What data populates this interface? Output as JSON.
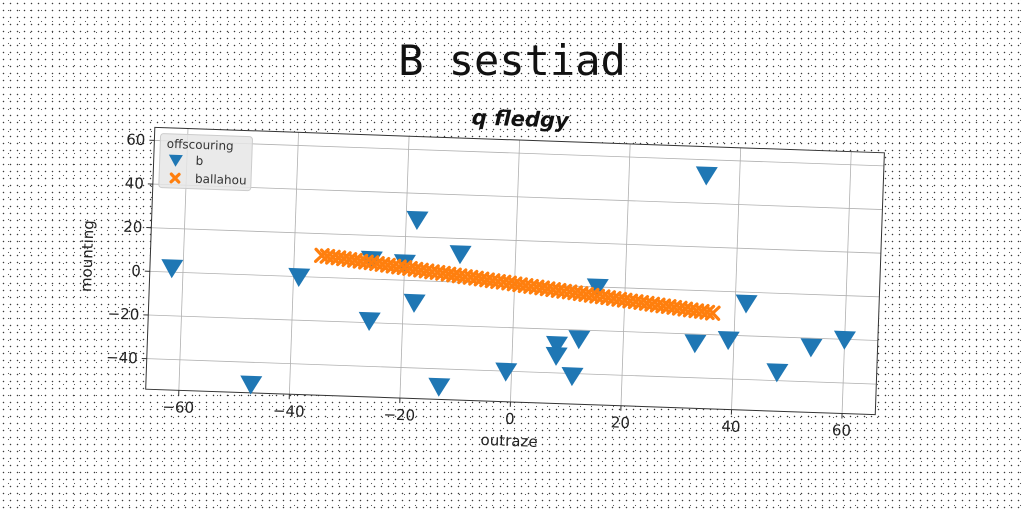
{
  "suptitle": "B sestiad",
  "chart_data": {
    "type": "scatter",
    "title": "q fledgy",
    "xlabel": "outraze",
    "ylabel": "mounting",
    "xlim": [
      -66,
      66
    ],
    "ylim": [
      -54,
      66
    ],
    "xticks": [
      -60,
      -40,
      -20,
      0,
      20,
      40,
      60
    ],
    "yticks": [
      -40,
      -20,
      0,
      20,
      40,
      60
    ],
    "grid": true,
    "legend": {
      "title": "offscouring",
      "location": "upper-left"
    },
    "series": [
      {
        "name": "b",
        "color": "#1f77b4",
        "marker": "triangle-down",
        "x": [
          -62,
          -47,
          -39,
          -26,
          -26,
          -20,
          -18,
          -18,
          -13,
          -10,
          -1,
          8,
          8,
          11,
          12,
          15,
          33,
          34,
          39,
          42,
          48,
          54,
          60
        ],
        "y": [
          2,
          -50,
          0,
          9,
          -19,
          8,
          28,
          -10,
          -48,
          13,
          -40,
          -27,
          -32,
          -41,
          -24,
          0,
          -24,
          53,
          -22,
          -5,
          -36,
          -24,
          -20
        ]
      },
      {
        "name": "ballahou",
        "color": "#ff7f0e",
        "marker": "x",
        "x": [
          -35,
          -34,
          -33,
          -32,
          -31,
          -30,
          -29,
          -28,
          -27,
          -26,
          -25,
          -24,
          -23,
          -22,
          -21,
          -20,
          -19,
          -18,
          -17,
          -16,
          -15,
          -14,
          -13,
          -12,
          -11,
          -10,
          -9,
          -8,
          -7,
          -6,
          -5,
          -4,
          -3,
          -2,
          -1,
          0,
          1,
          2,
          3,
          4,
          5,
          6,
          7,
          8,
          9,
          10,
          11,
          12,
          13,
          14,
          15,
          16,
          17,
          18,
          19,
          20,
          21,
          22,
          23,
          24,
          25,
          26,
          27,
          28,
          29,
          30,
          31,
          32,
          33,
          34,
          35,
          36
        ],
        "y": [
          10.0,
          9.7,
          9.4,
          9.2,
          8.9,
          8.6,
          8.3,
          8.0,
          7.7,
          7.5,
          7.2,
          6.9,
          6.6,
          6.3,
          6.0,
          5.8,
          5.5,
          5.2,
          4.9,
          4.6,
          4.3,
          4.1,
          3.8,
          3.5,
          3.2,
          2.9,
          2.6,
          2.4,
          2.1,
          1.8,
          1.5,
          1.2,
          0.9,
          0.7,
          0.4,
          0.1,
          -0.2,
          -0.5,
          -0.8,
          -1.0,
          -1.3,
          -1.6,
          -1.9,
          -2.2,
          -2.5,
          -2.7,
          -3.0,
          -3.3,
          -3.6,
          -3.9,
          -4.2,
          -4.4,
          -4.7,
          -5.0,
          -5.3,
          -5.6,
          -5.9,
          -6.1,
          -6.4,
          -6.7,
          -7.0,
          -7.3,
          -7.6,
          -7.8,
          -8.1,
          -8.4,
          -8.7,
          -9.0,
          -9.3,
          -9.5,
          -9.8,
          -10.1
        ]
      }
    ]
  }
}
